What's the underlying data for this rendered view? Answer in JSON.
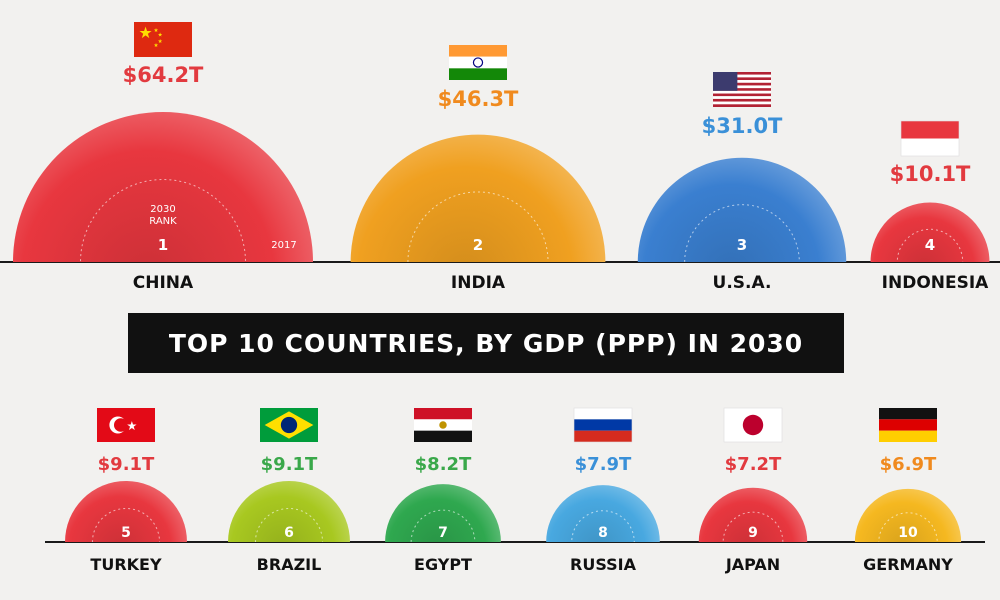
{
  "colors": {
    "red": "#e8373f",
    "orange": "#f0a020",
    "blue": "#3a7fd0",
    "green": "#2fa84f",
    "light_blue": "#48a8e0",
    "lime": "#a8c820",
    "yellow": "#f5b820"
  },
  "chart_data": {
    "type": "bubble",
    "title": "TOP 10 COUNTRIES, BY GDP (PPP) IN 2030",
    "inner_circle_label_top": "2030",
    "inner_circle_label_bottom": "RANK",
    "outer_ring_label": "2017",
    "unit": "$ trillions (GDP PPP)",
    "countries": [
      {
        "rank": "1",
        "name": "CHINA",
        "value": 64.2,
        "label": "$64.2T",
        "flag": "china-flag",
        "color": "#e8373f",
        "label_color": "#e23a3f"
      },
      {
        "rank": "2",
        "name": "INDIA",
        "value": 46.3,
        "label": "$46.3T",
        "flag": "india-flag",
        "color": "#f0a020",
        "label_color": "#f08a1e"
      },
      {
        "rank": "3",
        "name": "U.S.A.",
        "value": 31.0,
        "label": "$31.0T",
        "flag": "usa-flag",
        "color": "#3a7fd0",
        "label_color": "#3a90d8"
      },
      {
        "rank": "4",
        "name": "INDONESIA",
        "value": 10.1,
        "label": "$10.1T",
        "flag": "indonesia-flag",
        "color": "#e8373f",
        "label_color": "#e23a3f"
      },
      {
        "rank": "5",
        "name": "TURKEY",
        "value": 9.1,
        "label": "$9.1T",
        "flag": "turkey-flag",
        "color": "#e8373f",
        "label_color": "#e23a3f"
      },
      {
        "rank": "6",
        "name": "BRAZIL",
        "value": 9.1,
        "label": "$9.1T",
        "flag": "brazil-flag",
        "color": "#a8c820",
        "label_color": "#3aa84a"
      },
      {
        "rank": "7",
        "name": "EGYPT",
        "value": 8.2,
        "label": "$8.2T",
        "flag": "egypt-flag",
        "color": "#2fa84f",
        "label_color": "#3aa84a"
      },
      {
        "rank": "8",
        "name": "RUSSIA",
        "value": 7.9,
        "label": "$7.9T",
        "flag": "russia-flag",
        "color": "#48a8e0",
        "label_color": "#3a90d8"
      },
      {
        "rank": "9",
        "name": "JAPAN",
        "value": 7.2,
        "label": "$7.2T",
        "flag": "japan-flag",
        "color": "#e8373f",
        "label_color": "#e23a3f"
      },
      {
        "rank": "10",
        "name": "GERMANY",
        "value": 6.9,
        "label": "$6.9T",
        "flag": "germany-flag",
        "color": "#f5b820",
        "label_color": "#f08a1e"
      }
    ]
  }
}
